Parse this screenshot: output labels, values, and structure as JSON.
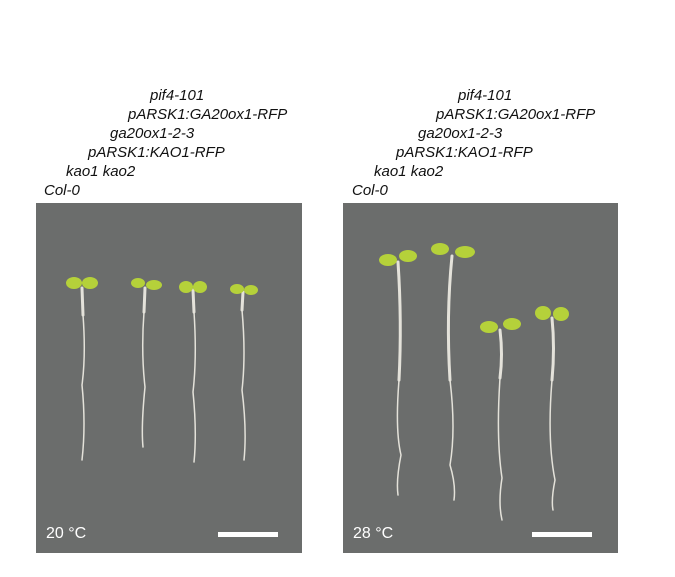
{
  "genotype_labels": [
    "Col-0",
    "kao1 kao2",
    "pARSK1:KAO1-RFP",
    "ga20ox1-2-3",
    "pARSK1:GA20ox1-RFP",
    "pif4-101"
  ],
  "panels": [
    {
      "temperature": "20 °C"
    },
    {
      "temperature": "28 °C"
    }
  ],
  "colors": {
    "background": "#6b6d6c",
    "cotyledon": "#b5d13a",
    "root": "#e4e2da"
  }
}
